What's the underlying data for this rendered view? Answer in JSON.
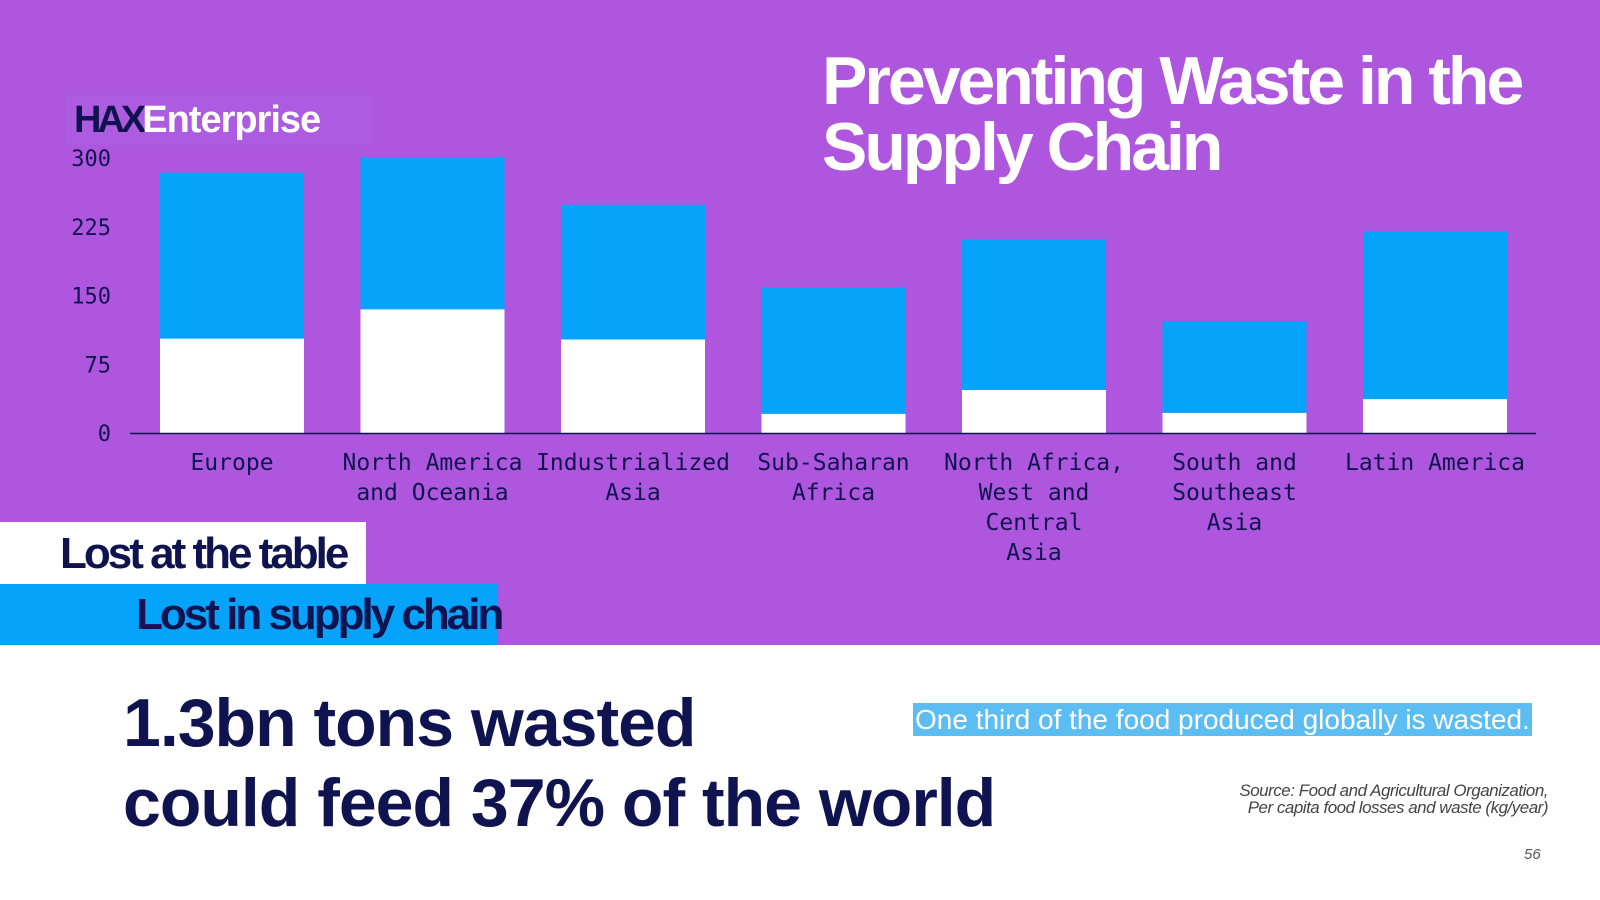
{
  "slide": {
    "title_line1": "Preventing Waste in the",
    "title_line2": "Supply Chain",
    "logo_part1": "HAX",
    "logo_part2": "Enterprise",
    "headline_line1": "1.3bn tons wasted",
    "headline_line2": "could feed 37% of the world",
    "note": "One third of the food produced globally is wasted.",
    "source_line1": "Source: Food and Agricultural Organization,",
    "source_line2": "Per capita food losses and waste (kg/year)",
    "page_number": "56",
    "legend_table": "Lost at the table",
    "legend_supply": "Lost in supply chain"
  },
  "colors": {
    "background": "#ae57de",
    "lost_at_table": "#ffffff",
    "lost_in_supply_chain": "#06a3fb",
    "text_dark": "#0f1450"
  },
  "chart_data": {
    "type": "bar",
    "stacked": true,
    "categories": [
      [
        "Europe"
      ],
      [
        "North America",
        "and Oceania"
      ],
      [
        "Industrialized",
        "Asia"
      ],
      [
        "Sub-Saharan",
        "Africa"
      ],
      [
        "North Africa,",
        "West and",
        "Central",
        "Asia"
      ],
      [
        "South and",
        "Southeast",
        "Asia"
      ],
      [
        "Latin America"
      ]
    ],
    "series": [
      {
        "name": "Lost at the table",
        "values": [
          103,
          135,
          102,
          21,
          47,
          22,
          37
        ]
      },
      {
        "name": "Lost in supply chain",
        "values": [
          181,
          166,
          147,
          138,
          164,
          100,
          183
        ]
      }
    ],
    "yticks": [
      "0",
      "75",
      "150",
      "225",
      "300"
    ],
    "ylim": [
      0,
      300
    ],
    "grid": false
  }
}
